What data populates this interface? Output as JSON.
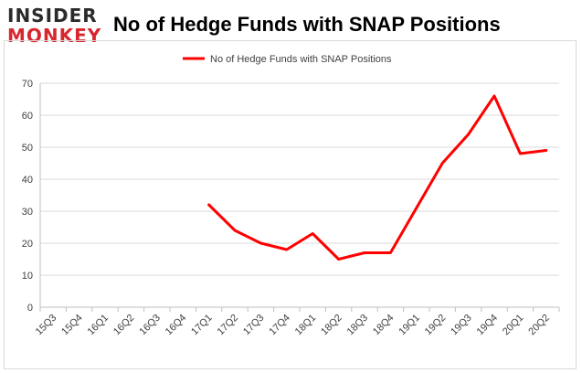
{
  "brand": {
    "logo_top": "INSIDER",
    "logo_bottom": "MONKEY"
  },
  "colors": {
    "line": "#ff0000",
    "grid": "#d9d9d9",
    "brand_red": "#d9262e"
  },
  "chart_data": {
    "type": "line",
    "title": "No of Hedge Funds with SNAP Positions",
    "xlabel": "",
    "ylabel": "",
    "ylim": [
      0,
      70
    ],
    "yticks": [
      0,
      10,
      20,
      30,
      40,
      50,
      60,
      70
    ],
    "grid": true,
    "legend": "top-center",
    "categories": [
      "15Q3",
      "15Q4",
      "16Q1",
      "16Q2",
      "16Q3",
      "16Q4",
      "17Q1",
      "17Q2",
      "17Q3",
      "17Q4",
      "18Q1",
      "18Q2",
      "18Q3",
      "18Q4",
      "19Q1",
      "19Q2",
      "19Q3",
      "19Q4",
      "20Q1",
      "20Q2"
    ],
    "series": [
      {
        "name": "No of Hedge Funds with SNAP Positions",
        "values": [
          null,
          null,
          null,
          null,
          null,
          null,
          32,
          24,
          20,
          18,
          23,
          15,
          17,
          17,
          31,
          45,
          54,
          66,
          48,
          49
        ]
      }
    ]
  }
}
